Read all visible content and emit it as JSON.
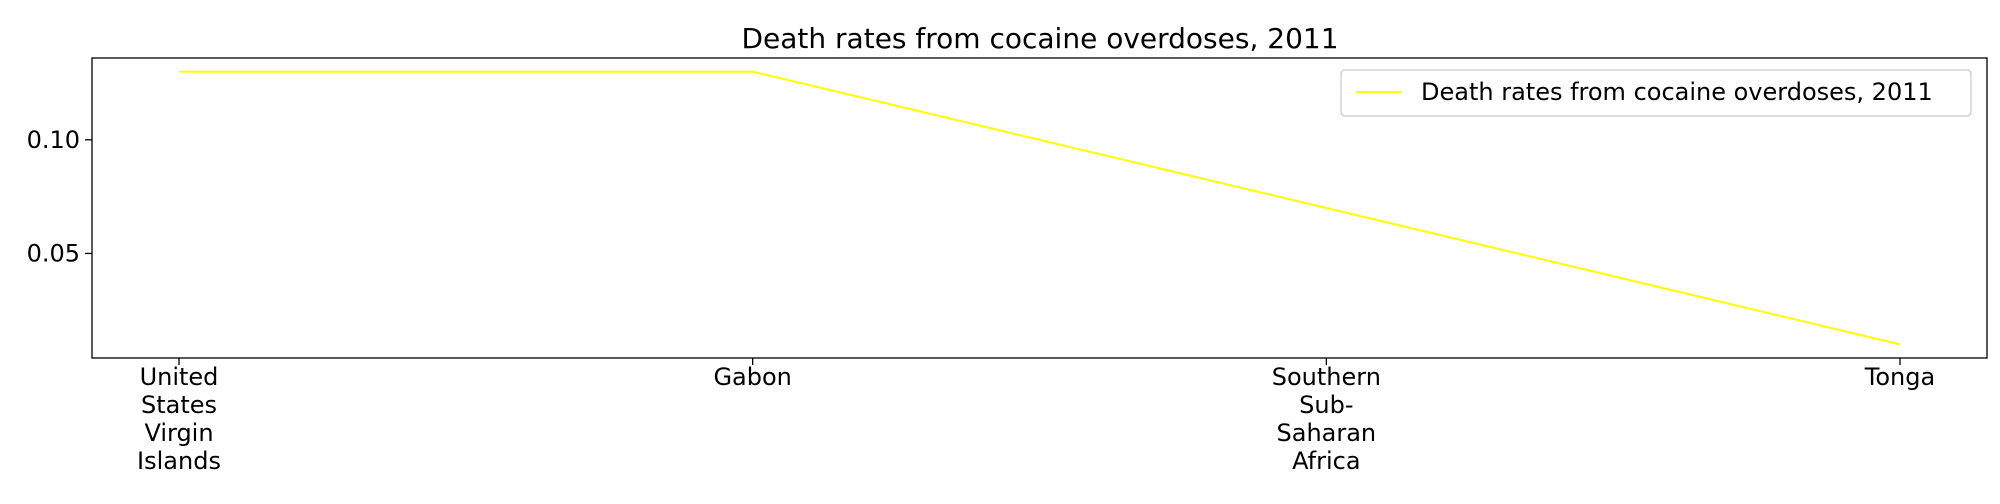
{
  "chart_data": {
    "type": "line",
    "title": "Death rates from cocaine overdoses, 2011",
    "xlabel": "",
    "ylabel": "",
    "categories": [
      "United States Virgin Islands",
      "Gabon",
      "Southern Sub-Saharan Africa",
      "Tonga"
    ],
    "category_lines": [
      [
        "United",
        "States",
        "Virgin",
        "Islands"
      ],
      [
        "Gabon"
      ],
      [
        "Southern",
        "Sub-",
        "Saharan",
        "Africa"
      ],
      [
        "Tonga"
      ]
    ],
    "series": [
      {
        "name": "Death rates from cocaine overdoses, 2011",
        "values": [
          0.13,
          0.13,
          0.07,
          0.01
        ],
        "color": "#ffff00"
      }
    ],
    "ylim": [
      0.004,
      0.136
    ],
    "yticks": [
      0.05,
      0.1
    ],
    "ytick_labels": [
      "0.05",
      "0.10"
    ],
    "grid": false,
    "legend_position": "top-right"
  }
}
